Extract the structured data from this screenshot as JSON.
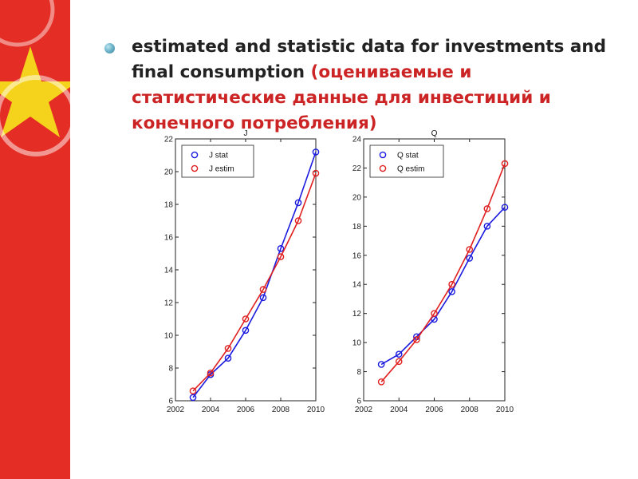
{
  "slide": {
    "text_en": "estimated and statistic data for investments and final consumption ",
    "text_ru": "(оцениваемые и статистические данные для инвестиций и конечного потребления)"
  },
  "colors": {
    "band_red": "#e42d24",
    "star_yellow": "#f5d21c",
    "text_dark": "#222222",
    "text_red": "#cc2424",
    "series_stat": "#1a1adf",
    "series_estim": "#e02020"
  },
  "icons": {
    "bullet": "bullet-icon"
  },
  "chart_data": [
    {
      "type": "line",
      "title": "J",
      "xlim": [
        2002,
        2010
      ],
      "ylim": [
        6,
        22
      ],
      "xticks": [
        "2002",
        "2004",
        "2006",
        "2008",
        "2010"
      ],
      "yticks": [
        "6",
        "8",
        "10",
        "12",
        "14",
        "16",
        "18",
        "20",
        "22"
      ],
      "legend_position": "top-left",
      "grid": false,
      "x": [
        2003,
        2004,
        2005,
        2006,
        2007,
        2008,
        2009,
        2010
      ],
      "series": [
        {
          "name": "J stat",
          "values": [
            6.2,
            7.6,
            8.6,
            10.3,
            12.3,
            15.3,
            18.1,
            21.2
          ]
        },
        {
          "name": "J estim",
          "values": [
            6.6,
            7.7,
            9.2,
            11.0,
            12.8,
            14.8,
            17.0,
            19.9
          ]
        }
      ]
    },
    {
      "type": "line",
      "title": "Q",
      "xlim": [
        2002,
        2010
      ],
      "ylim": [
        6,
        24
      ],
      "xticks": [
        "2002",
        "2004",
        "2006",
        "2008",
        "2010"
      ],
      "yticks": [
        "6",
        "8",
        "10",
        "12",
        "14",
        "16",
        "18",
        "20",
        "22",
        "24"
      ],
      "legend_position": "top-left",
      "grid": false,
      "x": [
        2003,
        2004,
        2005,
        2006,
        2007,
        2008,
        2009,
        2010
      ],
      "series": [
        {
          "name": "Q stat",
          "values": [
            8.5,
            9.2,
            10.4,
            11.6,
            13.5,
            15.8,
            18.0,
            19.3
          ]
        },
        {
          "name": "Q estim",
          "values": [
            7.3,
            8.7,
            10.2,
            12.0,
            14.0,
            16.4,
            19.2,
            22.3
          ]
        }
      ]
    }
  ]
}
